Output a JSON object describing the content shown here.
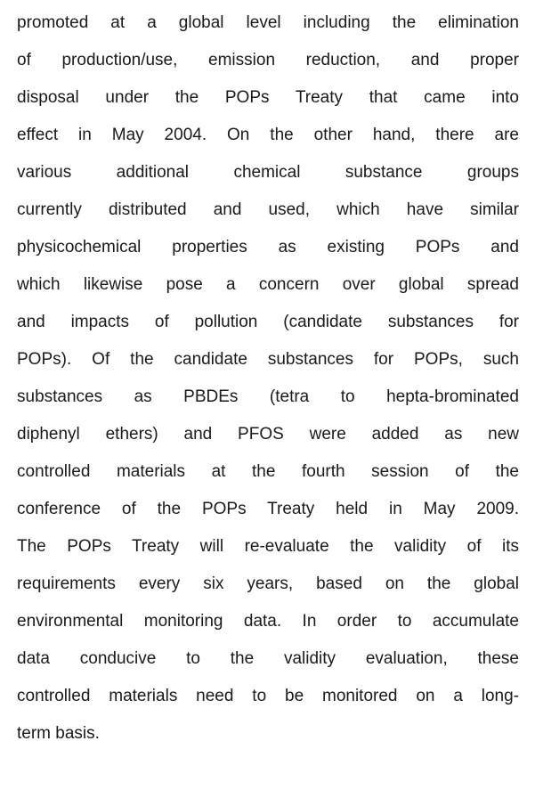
{
  "lines": [
    "promoted at a global level including the elimination",
    "of production/use, emission reduction, and proper",
    "disposal under the POPs Treaty that came into",
    "effect in May 2004. On the other hand, there are",
    "various additional chemical substance groups",
    "currently distributed and used, which have similar",
    "physicochemical properties as existing POPs and",
    "which likewise pose a concern over global spread",
    "and impacts of pollution (candidate substances for",
    "POPs). Of the candidate substances for POPs, such",
    "substances as PBDEs (tetra to hepta-brominated",
    "diphenyl ethers) and PFOS were added as new",
    "controlled materials at the fourth session of the",
    "conference of the POPs Treaty held in May 2009.",
    "The POPs Treaty will re-evaluate the validity of its",
    "requirements every six years, based on the global",
    "environmental monitoring data. In order to accumulate",
    "data conducive to the validity evaluation, these",
    "controlled materials need to be monitored on a long-",
    "term basis."
  ]
}
